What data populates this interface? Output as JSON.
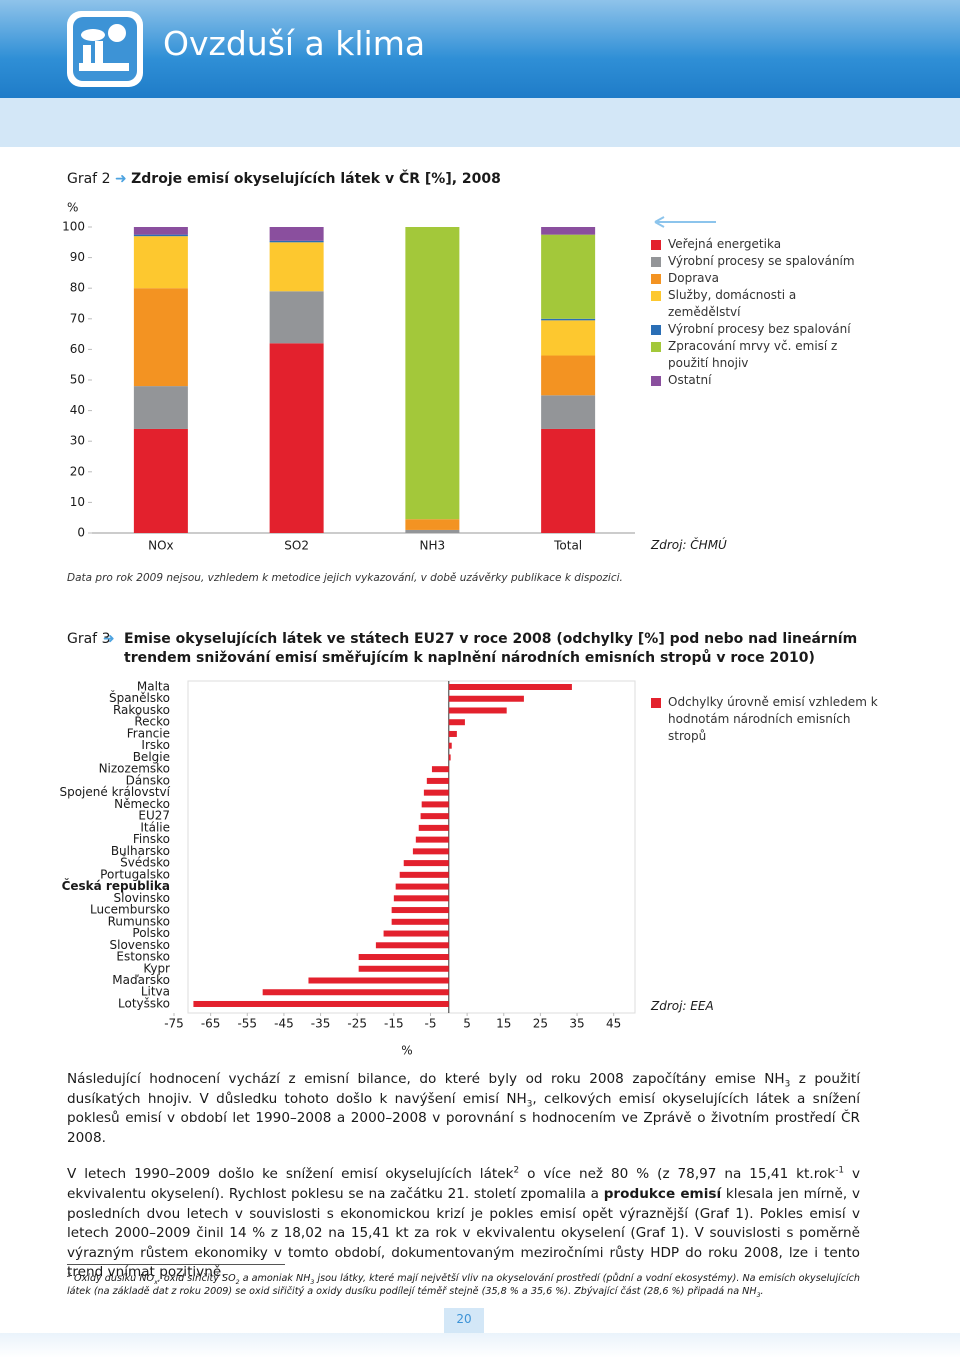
{
  "header": {
    "title": "Ovzduší a klima"
  },
  "chart_data": [
    {
      "type": "stacked_bar",
      "label": "Graf 2",
      "title": "Zdroje emisí okyselujících látek v ČR [%], 2008",
      "y_unit": "%",
      "categories": [
        "NOx",
        "SO2",
        "NH3",
        "Total"
      ],
      "series": [
        {
          "name": "Veřejná energetika",
          "color": "#e3212d",
          "values": [
            34,
            62,
            0,
            34
          ]
        },
        {
          "name": "Výrobní procesy se spalováním",
          "color": "#939598",
          "values": [
            14,
            17,
            1,
            11
          ]
        },
        {
          "name": "Doprava",
          "color": "#f39322",
          "values": [
            32,
            0,
            3.5,
            13
          ]
        },
        {
          "name": "Služby, domácnosti a zemědělství",
          "color": "#fdc82f",
          "values": [
            17,
            16,
            0,
            11.5
          ]
        },
        {
          "name": "Výrobní procesy bez spalování",
          "color": "#2a6eb5",
          "values": [
            0.5,
            0.5,
            0,
            0.5
          ]
        },
        {
          "name": "Zpracování mrvy vč. emisí z použití hnojiv",
          "color": "#a3c83a",
          "values": [
            0,
            0,
            95.5,
            27.5
          ]
        },
        {
          "name": "Ostatní",
          "color": "#8a4f9e",
          "values": [
            2.5,
            4.5,
            0,
            2.5
          ]
        }
      ],
      "ylim": [
        0,
        100
      ],
      "yticks": [
        0,
        10,
        20,
        30,
        40,
        50,
        60,
        70,
        80,
        90,
        100
      ],
      "note": "Data pro rok 2009 nejsou, vzhledem k metodice jejich vykazování, v době uzávěrky publikace k dispozici.",
      "source": "Zdroj: ČHMÚ"
    },
    {
      "type": "hbar",
      "label": "Graf 3",
      "title": "Emise okyselujících látek ve státech EU27 v roce 2008 (odchylky [%] pod nebo nad lineárním trendem snižování emisí směřujícím k naplnění národních emisních stropů v roce 2010)",
      "categories": [
        "Malta",
        "Španělsko",
        "Rakousko",
        "Řecko",
        "Francie",
        "Irsko",
        "Belgie",
        "Nizozemsko",
        "Dánsko",
        "Spojené království",
        "Německo",
        "EU27",
        "Itálie",
        "Finsko",
        "Bulharsko",
        "Švédsko",
        "Portugalsko",
        "Česká republika",
        "Slovinsko",
        "Lucembursko",
        "Rumunsko",
        "Polsko",
        "Slovensko",
        "Estonsko",
        "Kypr",
        "Maďarsko",
        "Litva",
        "Lotyšsko"
      ],
      "series": [
        {
          "name": "Odchylky úrovně emisí vzhledem k hodnotám národních emisních stropů",
          "color": "#e3212d",
          "values": [
            33.6,
            20.5,
            15.8,
            4.4,
            2.2,
            0.8,
            0.5,
            -4.6,
            -6.0,
            -6.8,
            -7.4,
            -7.7,
            -8.2,
            -9.0,
            -9.8,
            -12.3,
            -13.4,
            -14.5,
            -15.0,
            -15.6,
            -15.6,
            -17.8,
            -19.9,
            -24.6,
            -24.6,
            -38.3,
            -50.8,
            -69.7
          ]
        }
      ],
      "highlight": 17,
      "xlim": [
        -75,
        50
      ],
      "xticks": [
        -75,
        -65,
        -55,
        -45,
        -35,
        -25,
        -15,
        -5,
        5,
        15,
        25,
        35,
        45
      ],
      "x_label": "%",
      "source": "Zdroj: EEA"
    }
  ],
  "paragraphs": [
    [
      {
        "t": "Následující hodnocení vychází z emisní bilance, do které byly od roku 2008 započítány emise NH"
      },
      {
        "t": "3",
        "s": "sub"
      },
      {
        "t": " z použití dusíkatých hnojiv. V důsledku tohoto došlo k navýšení emisí NH"
      },
      {
        "t": "3",
        "s": "sub"
      },
      {
        "t": ", celkových emisí okyselujících látek a snížení poklesů emisí v období let 1990–2008 a 2000–2008 v porovnání s hodnocením ve Zprávě o životním prostředí ČR 2008."
      }
    ],
    [
      {
        "t": "V letech 1990–2009 došlo ke snížení emisí okyselujících látek"
      },
      {
        "t": "2",
        "s": "sup"
      },
      {
        "t": " o více než 80 % (z 78,97 na 15,41 kt.rok"
      },
      {
        "t": "-1",
        "s": "sup"
      },
      {
        "t": " v ekvivalentu okyselení). Rychlost poklesu se na začátku 21. století zpomalila a "
      },
      {
        "t": "produkce emisí",
        "s": "bold"
      },
      {
        "t": " klesala jen mírně, v posledních dvou letech v souvislosti s ekonomickou krizí je pokles emisí opět výraznější (Graf 1). Pokles emisí v letech 2000–2009 činil 14 % z 18,02 na 15,41 kt za rok v ekvivalentu okyselení (Graf 1). V souvislosti s poměrně výrazným růstem ekonomiky v tomto období, dokumentovaným meziročními růsty HDP do roku 2008, lze i tento trend vnímat pozitivně."
      }
    ]
  ],
  "footnote": [
    {
      "t": "2",
      "s": "sup"
    },
    {
      "t": " Oxidy dusíku NO"
    },
    {
      "t": "x",
      "s": "sub"
    },
    {
      "t": ", oxid siřičitý SO"
    },
    {
      "t": "2",
      "s": "sub"
    },
    {
      "t": " a amoniak NH"
    },
    {
      "t": "3",
      "s": "sub"
    },
    {
      "t": " jsou látky, které mají největší vliv na okyselování prostředí (půdní a vodní ekosystémy). Na emisích okyselujících látek (na základě dat z roku 2009) se oxid siřičitý a oxidy dusíku podílejí téměř stejně (35,8 % a 35,6 %). Zbývající část (28,6 %) připadá na NH"
    },
    {
      "t": "3",
      "s": "sub"
    },
    {
      "t": "."
    }
  ],
  "page_number": 20
}
